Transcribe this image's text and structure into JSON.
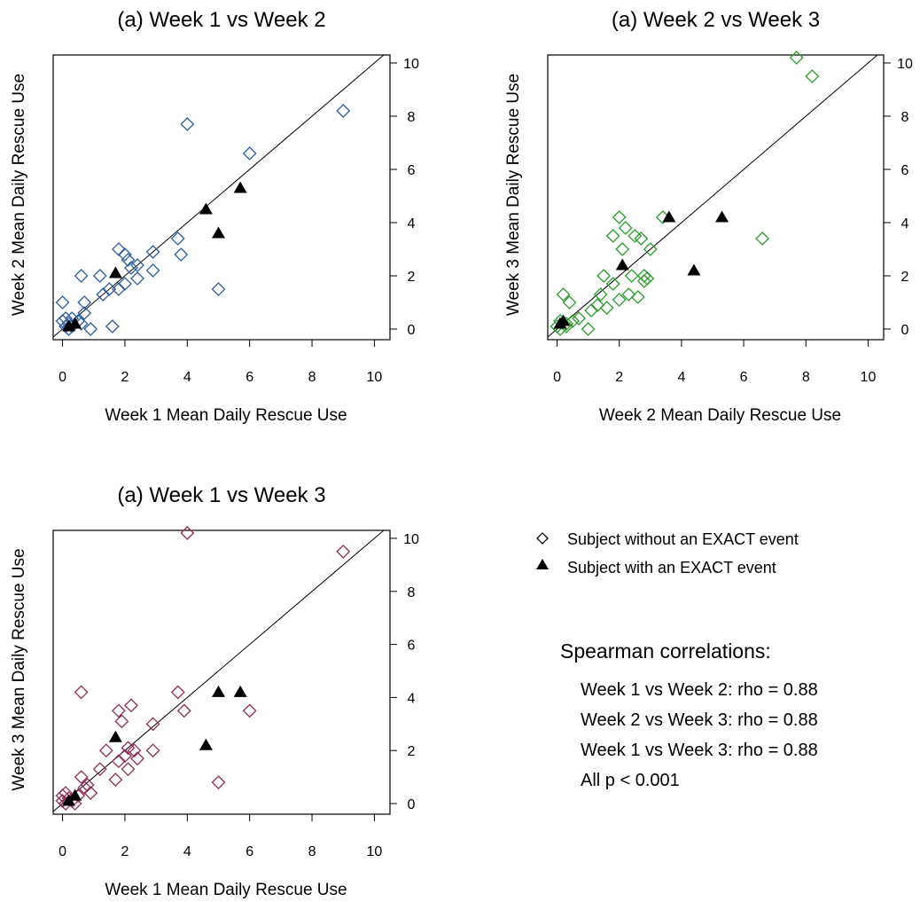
{
  "chart_data": [
    {
      "type": "scatter",
      "title": "(a) Week 1 vs Week 2",
      "xlabel": "Week 1 Mean Daily Rescue Use",
      "ylabel": "Week 2 Mean Daily Rescue Use",
      "xlim": [
        -0.3,
        10.5
      ],
      "ylim": [
        -0.4,
        10.3
      ],
      "xticks": [
        "0",
        "2",
        "4",
        "6",
        "8",
        "10"
      ],
      "yticks": [
        "0",
        "2",
        "4",
        "6",
        "8",
        "10"
      ],
      "reference_line": "y = x",
      "color": "#2f5e9b",
      "series": [
        {
          "marker": "open-diamond",
          "points": [
            [
              0.0,
              1.0
            ],
            [
              0.0,
              0.3
            ],
            [
              0.1,
              0.1
            ],
            [
              0.1,
              0.4
            ],
            [
              0.2,
              0.0
            ],
            [
              0.2,
              0.2
            ],
            [
              0.3,
              0.1
            ],
            [
              0.3,
              0.4
            ],
            [
              0.5,
              0.3
            ],
            [
              0.6,
              0.2
            ],
            [
              0.6,
              2.0
            ],
            [
              0.7,
              0.6
            ],
            [
              0.7,
              1.0
            ],
            [
              0.9,
              0.0
            ],
            [
              1.2,
              2.0
            ],
            [
              1.3,
              1.3
            ],
            [
              1.5,
              1.5
            ],
            [
              1.6,
              0.1
            ],
            [
              1.8,
              1.5
            ],
            [
              1.8,
              3.0
            ],
            [
              2.0,
              2.8
            ],
            [
              2.0,
              1.7
            ],
            [
              2.1,
              2.6
            ],
            [
              2.2,
              2.3
            ],
            [
              2.4,
              2.4
            ],
            [
              2.4,
              1.9
            ],
            [
              2.9,
              2.9
            ],
            [
              2.9,
              2.2
            ],
            [
              3.7,
              3.4
            ],
            [
              3.8,
              2.8
            ],
            [
              4.0,
              7.7
            ],
            [
              5.0,
              1.5
            ],
            [
              6.0,
              6.6
            ],
            [
              9.0,
              8.2
            ]
          ]
        },
        {
          "marker": "filled-triangle",
          "points": [
            [
              0.2,
              0.1
            ],
            [
              0.4,
              0.2
            ],
            [
              1.7,
              2.1
            ],
            [
              4.6,
              4.5
            ],
            [
              5.0,
              3.6
            ],
            [
              5.7,
              5.3
            ]
          ]
        }
      ]
    },
    {
      "type": "scatter",
      "title": "(a) Week 2 vs Week 3",
      "xlabel": "Week 2 Mean Daily Rescue Use",
      "ylabel": "Week 3 Mean Daily Rescue Use",
      "xlim": [
        -0.3,
        10.5
      ],
      "ylim": [
        -0.4,
        10.3
      ],
      "xticks": [
        "0",
        "2",
        "4",
        "6",
        "8",
        "10"
      ],
      "yticks": [
        "0",
        "2",
        "4",
        "6",
        "8",
        "10"
      ],
      "reference_line": "y = x",
      "color": "#2e9b2e",
      "series": [
        {
          "marker": "open-diamond",
          "points": [
            [
              0.0,
              0.1
            ],
            [
              0.1,
              0.3
            ],
            [
              0.1,
              0.0
            ],
            [
              0.2,
              1.3
            ],
            [
              0.3,
              0.2
            ],
            [
              0.3,
              0.1
            ],
            [
              0.4,
              1.0
            ],
            [
              0.5,
              0.3
            ],
            [
              0.7,
              0.4
            ],
            [
              1.0,
              0.0
            ],
            [
              1.1,
              0.7
            ],
            [
              1.3,
              0.9
            ],
            [
              1.4,
              1.3
            ],
            [
              1.5,
              2.0
            ],
            [
              1.6,
              0.8
            ],
            [
              1.8,
              3.5
            ],
            [
              1.8,
              1.7
            ],
            [
              2.0,
              4.2
            ],
            [
              2.0,
              1.1
            ],
            [
              2.1,
              3.0
            ],
            [
              2.2,
              3.8
            ],
            [
              2.3,
              1.3
            ],
            [
              2.4,
              2.0
            ],
            [
              2.5,
              3.5
            ],
            [
              2.6,
              1.2
            ],
            [
              2.7,
              3.4
            ],
            [
              2.8,
              2.0
            ],
            [
              2.8,
              1.8
            ],
            [
              2.9,
              1.9
            ],
            [
              3.0,
              3.0
            ],
            [
              3.4,
              4.2
            ],
            [
              6.6,
              3.4
            ],
            [
              7.7,
              10.2
            ],
            [
              8.2,
              9.5
            ]
          ]
        },
        {
          "marker": "filled-triangle",
          "points": [
            [
              0.1,
              0.2
            ],
            [
              0.2,
              0.3
            ],
            [
              2.1,
              2.4
            ],
            [
              3.6,
              4.2
            ],
            [
              4.4,
              2.2
            ],
            [
              5.3,
              4.2
            ]
          ]
        }
      ]
    },
    {
      "type": "scatter",
      "title": "(a) Week 1 vs Week 3",
      "xlabel": "Week 1 Mean Daily Rescue Use",
      "ylabel": "Week 3 Mean Daily Rescue Use",
      "xlim": [
        -0.3,
        10.5
      ],
      "ylim": [
        -0.4,
        10.3
      ],
      "xticks": [
        "0",
        "2",
        "4",
        "6",
        "8",
        "10"
      ],
      "yticks": [
        "0",
        "2",
        "4",
        "6",
        "8",
        "10"
      ],
      "reference_line": "y = x",
      "color": "#8e2c5a",
      "series": [
        {
          "marker": "open-diamond",
          "points": [
            [
              0.0,
              0.3
            ],
            [
              0.0,
              0.1
            ],
            [
              0.1,
              0.4
            ],
            [
              0.1,
              0.0
            ],
            [
              0.2,
              0.2
            ],
            [
              0.3,
              0.1
            ],
            [
              0.4,
              0.0
            ],
            [
              0.5,
              0.3
            ],
            [
              0.6,
              4.2
            ],
            [
              0.6,
              1.0
            ],
            [
              0.7,
              0.6
            ],
            [
              0.8,
              0.7
            ],
            [
              0.9,
              0.4
            ],
            [
              1.2,
              1.3
            ],
            [
              1.4,
              2.0
            ],
            [
              1.7,
              0.9
            ],
            [
              1.8,
              3.5
            ],
            [
              1.8,
              1.6
            ],
            [
              1.9,
              3.1
            ],
            [
              2.0,
              1.8
            ],
            [
              2.1,
              2.1
            ],
            [
              2.1,
              1.3
            ],
            [
              2.2,
              3.7
            ],
            [
              2.3,
              2.0
            ],
            [
              2.4,
              1.7
            ],
            [
              2.9,
              3.0
            ],
            [
              2.9,
              2.0
            ],
            [
              3.7,
              4.2
            ],
            [
              3.9,
              3.5
            ],
            [
              4.0,
              10.2
            ],
            [
              5.0,
              0.8
            ],
            [
              6.0,
              3.5
            ],
            [
              9.0,
              9.5
            ]
          ]
        },
        {
          "marker": "filled-triangle",
          "points": [
            [
              0.2,
              0.1
            ],
            [
              0.4,
              0.3
            ],
            [
              1.7,
              2.5
            ],
            [
              4.6,
              2.2
            ],
            [
              5.0,
              4.2
            ],
            [
              5.7,
              4.2
            ]
          ]
        }
      ]
    }
  ],
  "legend": {
    "items": [
      {
        "marker": "open-diamond",
        "label": "Subject without an EXACT event"
      },
      {
        "marker": "filled-triangle",
        "label": "Subject with an EXACT event"
      }
    ]
  },
  "correlations": {
    "title": "Spearman correlations:",
    "lines": [
      "Week 1 vs Week 2: rho = 0.88",
      "Week 2 vs Week 3: rho = 0.88",
      "Week 1 vs Week 3: rho = 0.88",
      "All p < 0.001"
    ]
  }
}
